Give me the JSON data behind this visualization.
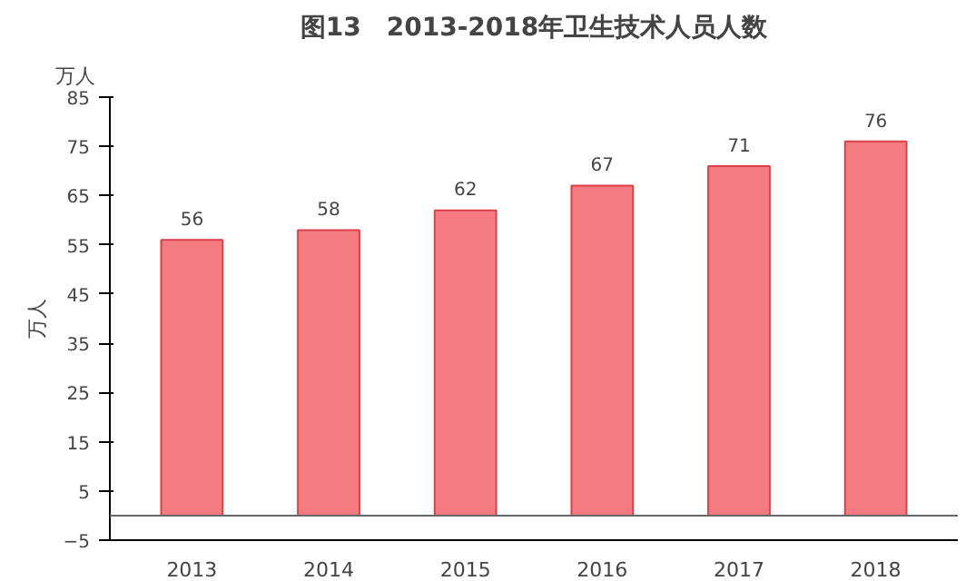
{
  "chart_data": {
    "type": "bar",
    "title": "图13　2013-2018年卫生技术人员人数",
    "ylabel": "万人",
    "annotations": [
      "万人"
    ],
    "categories": [
      "2013",
      "2014",
      "2015",
      "2016",
      "2017",
      "2018"
    ],
    "values": [
      56,
      58,
      62,
      67,
      71,
      76
    ],
    "color": "#f47c80",
    "ylim": [
      -5,
      85
    ],
    "yticks": [
      -5,
      5,
      15,
      25,
      35,
      45,
      55,
      65,
      75,
      85
    ],
    "grid": false,
    "data_labels": true
  }
}
